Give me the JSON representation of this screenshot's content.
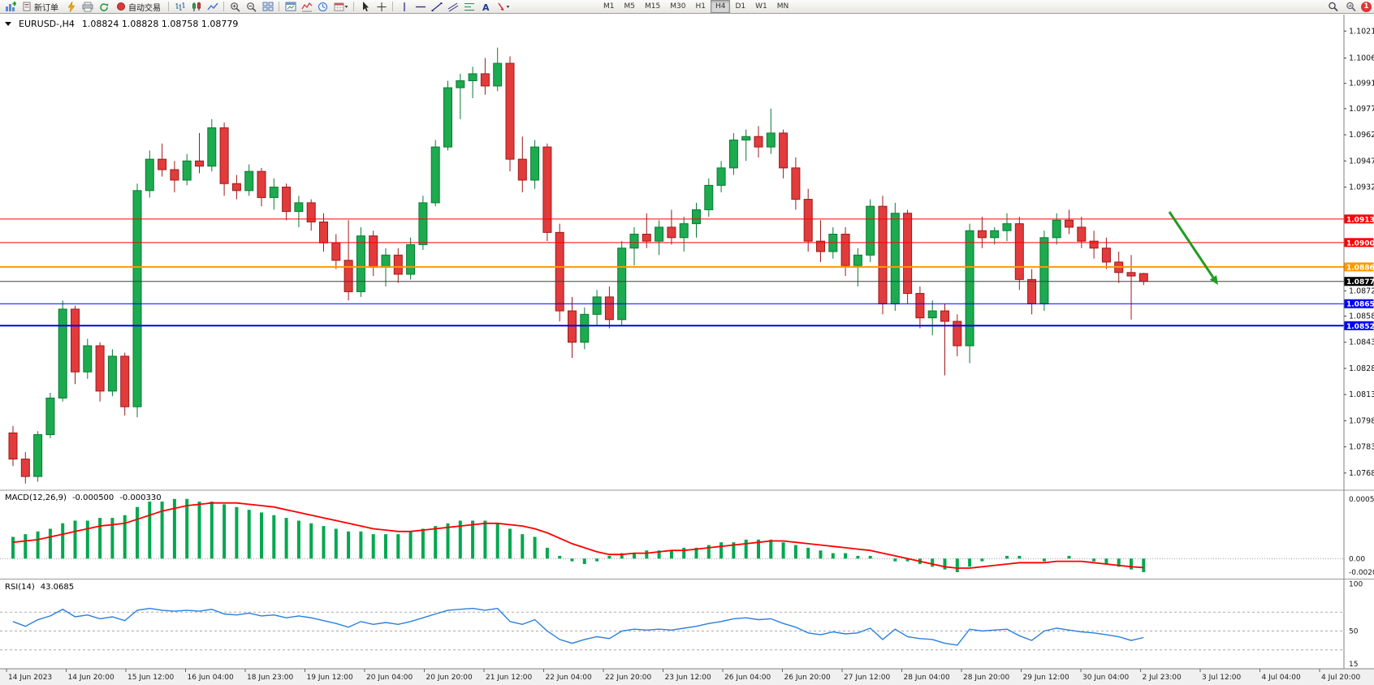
{
  "toolbar": {
    "new_order_label": "新订单",
    "autotrading_label": "自动交易",
    "timeframes": [
      "M1",
      "M5",
      "M15",
      "M30",
      "H1",
      "H4",
      "D1",
      "W1",
      "MN"
    ],
    "active_timeframe": "H4",
    "notification_count": "1",
    "icon_names": [
      "new-chart",
      "new-order",
      "metaeditor",
      "print",
      "refresh",
      "autotrading",
      "bars-chart",
      "candlestick-chart",
      "line-chart",
      "zoom-in",
      "zoom-out",
      "tile-windows",
      "chart-window",
      "indicators",
      "clock",
      "calendar",
      "cursor",
      "crosshair",
      "vertical-line",
      "horizontal-line",
      "trendline",
      "channel",
      "fibonacci",
      "text-tool",
      "arrows-tool",
      "search",
      "chart-search",
      "notification"
    ]
  },
  "chart": {
    "symbol_period": "EURUSD-,H4",
    "ohlc_text": "1.08824 1.08828 1.08758 1.08779"
  },
  "indicators": {
    "macd": {
      "name": "MACD(12,26,9)",
      "value_main": "-0.000500",
      "value_signal": "-0.000330"
    },
    "rsi": {
      "name": "RSI(14)",
      "value": "43.0685"
    }
  },
  "chart_data": {
    "type": "candlestick",
    "symbol": "EURUSD",
    "period": "H4",
    "ohlc_current": {
      "open": 1.08824,
      "high": 1.08828,
      "low": 1.08758,
      "close": 1.08779
    },
    "price_range": {
      "max": 1.103,
      "min": 1.076
    },
    "colors": {
      "bull": "#1cab4f",
      "bull_stroke": "#0a7a33",
      "bear": "#e23b3b",
      "bear_stroke": "#9e1a1a",
      "macd_hist": "#00a84f",
      "macd_signal": "#ff0000",
      "rsi_line": "#2a7fde",
      "arrow": "#1f9d1f"
    },
    "candles": [
      [
        1.0791,
        1.0795,
        1.0772,
        1.0776
      ],
      [
        1.0776,
        1.078,
        1.0762,
        1.0766
      ],
      [
        1.0766,
        1.0792,
        1.0763,
        1.079
      ],
      [
        1.079,
        1.0814,
        1.0788,
        1.0811
      ],
      [
        1.0811,
        1.0867,
        1.0809,
        1.0862
      ],
      [
        1.0862,
        1.0864,
        1.0819,
        1.0826
      ],
      [
        1.0826,
        1.0845,
        1.0822,
        1.0841
      ],
      [
        1.0841,
        1.0843,
        1.0809,
        1.0815
      ],
      [
        1.0815,
        1.0839,
        1.0812,
        1.0835
      ],
      [
        1.0835,
        1.0837,
        1.0801,
        1.0806
      ],
      [
        1.0806,
        1.0934,
        1.08,
        1.093
      ],
      [
        1.093,
        1.0953,
        1.0926,
        1.0948
      ],
      [
        1.0948,
        1.0957,
        1.0938,
        1.0942
      ],
      [
        1.0942,
        1.0947,
        1.0929,
        1.0936
      ],
      [
        1.0936,
        1.0951,
        1.0933,
        1.0947
      ],
      [
        1.0947,
        1.0963,
        1.094,
        1.0944
      ],
      [
        1.0944,
        1.0971,
        1.0941,
        1.0966
      ],
      [
        1.0966,
        1.0969,
        1.0927,
        1.0934
      ],
      [
        1.0934,
        1.0939,
        1.0925,
        1.093
      ],
      [
        1.093,
        1.0945,
        1.0927,
        1.0941
      ],
      [
        1.0941,
        1.0943,
        1.0921,
        1.0926
      ],
      [
        1.0926,
        1.0937,
        1.0919,
        1.0932
      ],
      [
        1.0932,
        1.0934,
        1.0913,
        1.0918
      ],
      [
        1.0918,
        1.0927,
        1.0909,
        1.0923
      ],
      [
        1.0923,
        1.0925,
        1.0907,
        1.0912
      ],
      [
        1.0912,
        1.0917,
        1.0895,
        1.09
      ],
      [
        1.09,
        1.0905,
        1.0885,
        1.089
      ],
      [
        1.089,
        1.0913,
        1.0867,
        1.0872
      ],
      [
        1.0872,
        1.0909,
        1.0869,
        1.0904
      ],
      [
        1.0904,
        1.0907,
        1.0881,
        1.0886
      ],
      [
        1.0886,
        1.0897,
        1.0875,
        1.0893
      ],
      [
        1.0893,
        1.0897,
        1.0877,
        1.0882
      ],
      [
        1.0882,
        1.0903,
        1.0879,
        1.0899
      ],
      [
        1.0899,
        1.0927,
        1.0896,
        1.0923
      ],
      [
        1.0923,
        1.0959,
        1.0921,
        1.0955
      ],
      [
        1.0955,
        1.0993,
        1.0953,
        1.0989
      ],
      [
        1.0989,
        1.0997,
        1.0971,
        1.0993
      ],
      [
        1.0993,
        1.1001,
        1.0983,
        1.0997
      ],
      [
        1.0997,
        1.1006,
        1.0985,
        1.099
      ],
      [
        1.099,
        1.1012,
        1.0987,
        1.1003
      ],
      [
        1.1003,
        1.1007,
        1.0941,
        1.0948
      ],
      [
        1.0948,
        1.0961,
        1.0929,
        1.0936
      ],
      [
        1.0936,
        1.0959,
        1.0931,
        1.0955
      ],
      [
        1.0955,
        1.0957,
        1.0901,
        1.0906
      ],
      [
        1.0906,
        1.0911,
        1.0855,
        1.0861
      ],
      [
        1.0861,
        1.0869,
        1.0834,
        1.0843
      ],
      [
        1.0843,
        1.0863,
        1.0839,
        1.0859
      ],
      [
        1.0859,
        1.0873,
        1.0853,
        1.0869
      ],
      [
        1.0869,
        1.0875,
        1.0851,
        1.0856
      ],
      [
        1.0856,
        1.0901,
        1.0853,
        1.0897
      ],
      [
        1.0897,
        1.0909,
        1.0887,
        1.0905
      ],
      [
        1.0905,
        1.0917,
        1.0897,
        1.0901
      ],
      [
        1.0901,
        1.0913,
        1.0893,
        1.0909
      ],
      [
        1.0909,
        1.0919,
        1.0899,
        1.0903
      ],
      [
        1.0903,
        1.0915,
        1.0895,
        1.0911
      ],
      [
        1.0911,
        1.0923,
        1.0903,
        1.0919
      ],
      [
        1.0919,
        1.0937,
        1.0915,
        1.0933
      ],
      [
        1.0933,
        1.0947,
        1.0929,
        1.0943
      ],
      [
        1.0943,
        1.0963,
        1.0939,
        1.0959
      ],
      [
        1.0959,
        1.0965,
        1.0947,
        1.0961
      ],
      [
        1.0961,
        1.0967,
        1.0949,
        1.0955
      ],
      [
        1.0955,
        1.0977,
        1.0951,
        1.0963
      ],
      [
        1.0963,
        1.0965,
        1.0937,
        1.0943
      ],
      [
        1.0943,
        1.0949,
        1.0919,
        1.0925
      ],
      [
        1.0925,
        1.0931,
        1.0895,
        1.0901
      ],
      [
        1.0901,
        1.0913,
        1.0889,
        1.0895
      ],
      [
        1.0895,
        1.0909,
        1.0891,
        1.0905
      ],
      [
        1.0905,
        1.0909,
        1.0881,
        1.0887
      ],
      [
        1.0887,
        1.0897,
        1.0875,
        1.0893
      ],
      [
        1.0893,
        1.0925,
        1.0889,
        1.0921
      ],
      [
        1.0921,
        1.0927,
        1.0859,
        1.0865
      ],
      [
        1.0865,
        1.0923,
        1.0861,
        1.0917
      ],
      [
        1.0917,
        1.0919,
        1.0865,
        1.0871
      ],
      [
        1.0871,
        1.0875,
        1.0851,
        1.0857
      ],
      [
        1.0857,
        1.0867,
        1.0847,
        1.0861
      ],
      [
        1.0861,
        1.0865,
        1.0824,
        1.0855
      ],
      [
        1.0855,
        1.0859,
        1.0835,
        1.0841
      ],
      [
        1.0841,
        1.0911,
        1.0831,
        1.0907
      ],
      [
        1.0907,
        1.0915,
        1.0897,
        1.0903
      ],
      [
        1.0903,
        1.0909,
        1.0899,
        1.0907
      ],
      [
        1.0907,
        1.0917,
        1.0901,
        1.0911
      ],
      [
        1.0911,
        1.0915,
        1.0873,
        1.0879
      ],
      [
        1.0879,
        1.0885,
        1.0859,
        1.0865
      ],
      [
        1.0865,
        1.0907,
        1.0861,
        1.0903
      ],
      [
        1.0903,
        1.0917,
        1.0899,
        1.0913
      ],
      [
        1.0913,
        1.0919,
        1.0905,
        1.0909
      ],
      [
        1.0909,
        1.0915,
        1.0897,
        1.0901
      ],
      [
        1.0901,
        1.0907,
        1.0891,
        1.0897
      ],
      [
        1.0897,
        1.0903,
        1.0885,
        1.0889
      ],
      [
        1.0889,
        1.0895,
        1.0877,
        1.0883
      ],
      [
        1.0883,
        1.0893,
        1.0856,
        1.0881
      ],
      [
        1.08824,
        1.08828,
        1.08758,
        1.08779
      ]
    ],
    "price_lines": [
      {
        "price": 1.09137,
        "color": "#ff0000",
        "width": 1,
        "label": "1.09137",
        "label_bg": "#ff0000"
      },
      {
        "price": 1.09002,
        "color": "#ff0000",
        "width": 1,
        "label": "1.09002",
        "label_bg": "#ff0000"
      },
      {
        "price": 1.08862,
        "color": "#ff9900",
        "width": 2,
        "label": "1.08862",
        "label_bg": "#ff9900"
      },
      {
        "price": 1.08779,
        "color": "#404040",
        "width": 1,
        "label": "1.08779",
        "label_bg": "#000000"
      },
      {
        "price": 1.08651,
        "color": "#0000ff",
        "width": 1,
        "label": "1.08651",
        "label_bg": "#0000ff"
      },
      {
        "price": 1.08525,
        "color": "#0000ff",
        "width": 2,
        "label": "1.08525",
        "label_bg": "#0000ff"
      }
    ],
    "price_ticks": [
      1.10215,
      1.1006,
      1.09915,
      1.0977,
      1.0962,
      1.0947,
      1.0932,
      1.08725,
      1.0858,
      1.0843,
      1.0828,
      1.0813,
      1.0798,
      1.0783,
      1.0768
    ],
    "time_labels": [
      "14 Jun 2023",
      "14 Jun 20:00",
      "15 Jun 12:00",
      "16 Jun 04:00",
      "18 Jun 23:00",
      "19 Jun 12:00",
      "20 Jun 04:00",
      "20 Jun 20:00",
      "21 Jun 12:00",
      "22 Jun 04:00",
      "22 Jun 20:00",
      "23 Jun 12:00",
      "26 Jun 04:00",
      "26 Jun 20:00",
      "27 Jun 12:00",
      "28 Jun 04:00",
      "28 Jun 20:00",
      "29 Jun 12:00",
      "30 Jun 04:00",
      "2 Jul 23:00",
      "3 Jul 12:00",
      "4 Jul 04:00",
      "4 Jul 20:00"
    ],
    "macd": {
      "histogram": [
        8,
        9,
        10,
        11,
        13,
        14,
        14,
        15,
        15,
        16,
        19,
        21,
        21,
        22,
        22,
        21,
        21,
        20,
        19,
        18,
        17,
        16,
        15,
        14,
        13,
        12,
        11,
        10,
        10,
        9,
        9,
        9,
        10,
        11,
        12,
        13,
        14,
        14,
        14,
        13,
        11,
        9,
        8,
        4,
        1,
        -1,
        -2,
        -1,
        1,
        2,
        2,
        3,
        3,
        3,
        4,
        4,
        5,
        6,
        6,
        7,
        7,
        7,
        6,
        5,
        4,
        3,
        2,
        2,
        1,
        1,
        0,
        -1,
        -1,
        -2,
        -3,
        -4,
        -5,
        -3,
        -1,
        0,
        1,
        1,
        0,
        -1,
        0,
        1,
        0,
        -1,
        -2,
        -3,
        -4,
        -5
      ],
      "signal": [
        6,
        6.5,
        7,
        8,
        9,
        10,
        11,
        12,
        12.5,
        13,
        14.5,
        16,
        17.5,
        18.5,
        19.5,
        20,
        20.5,
        20.5,
        20.5,
        20,
        19.5,
        19,
        18,
        17,
        16,
        15,
        14,
        13,
        12,
        11,
        10.5,
        10,
        10,
        10.5,
        11,
        11.5,
        12,
        12.5,
        13,
        13,
        12.5,
        12,
        11,
        9.5,
        7.5,
        5.5,
        4,
        2.5,
        1.5,
        1.5,
        2,
        2,
        2.5,
        3,
        3,
        3.5,
        4,
        4.5,
        5,
        5.5,
        6,
        6.5,
        6.5,
        6,
        5.5,
        5,
        4.5,
        4,
        3.5,
        3,
        2,
        1,
        0,
        -1,
        -2,
        -3,
        -3.5,
        -3.5,
        -3,
        -2.5,
        -2,
        -1.5,
        -1.5,
        -1.5,
        -1,
        -1,
        -1,
        -1.5,
        -2,
        -2.5,
        -3,
        -3.3
      ],
      "axis": {
        "top": "0.0005211",
        "zero": "0.00",
        "bottom": "-0.00205"
      }
    },
    "rsi": {
      "values": [
        60,
        55,
        62,
        66,
        73,
        65,
        67,
        63,
        65,
        61,
        72,
        74,
        72,
        71,
        72,
        71,
        73,
        68,
        67,
        69,
        66,
        67,
        64,
        66,
        64,
        61,
        58,
        54,
        60,
        57,
        59,
        57,
        60,
        64,
        68,
        72,
        73,
        74,
        72,
        74,
        60,
        57,
        62,
        50,
        41,
        37,
        41,
        44,
        42,
        50,
        52,
        51,
        52,
        51,
        53,
        55,
        58,
        60,
        63,
        64,
        62,
        63,
        58,
        54,
        48,
        46,
        49,
        47,
        48,
        53,
        41,
        52,
        44,
        42,
        41,
        37,
        35,
        52,
        50,
        51,
        52,
        45,
        40,
        50,
        53,
        51,
        49,
        48,
        46,
        44,
        40,
        43.1
      ],
      "levels": [
        70,
        50,
        30
      ],
      "axis": {
        "top": "100",
        "middle": "50",
        "bottom": "15"
      }
    },
    "annotations": [
      {
        "type": "arrow",
        "from": [
          1440,
          243
        ],
        "to": [
          1500,
          333
        ],
        "color": "#1f9d1f"
      }
    ]
  }
}
